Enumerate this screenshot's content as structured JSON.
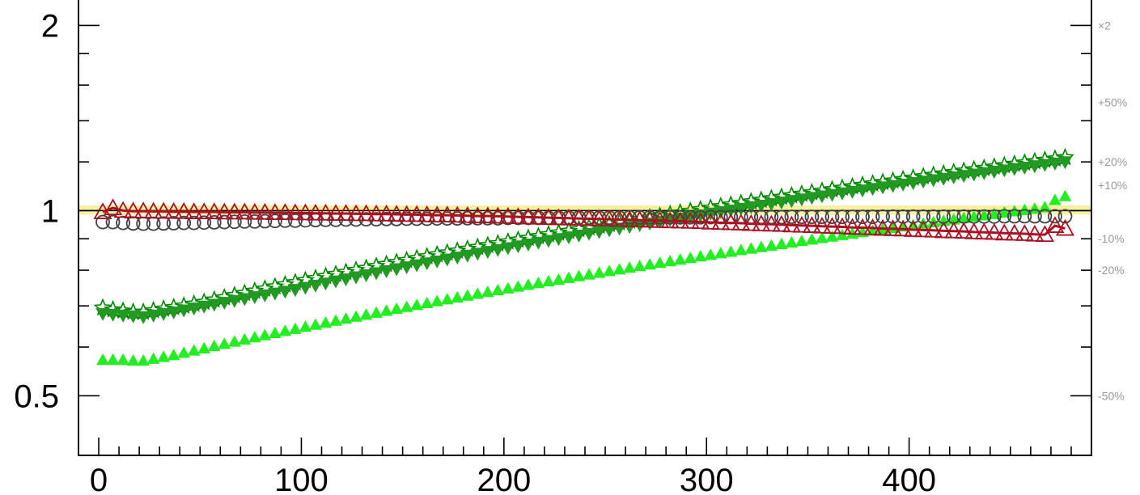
{
  "chart_data": {
    "type": "scatter",
    "title": "",
    "xlabel": "",
    "ylabel": "",
    "x_range": [
      -10,
      490
    ],
    "y_range": [
      0.4,
      2.2
    ],
    "y_scale": "log",
    "x_ticks": [
      "0",
      "100",
      "200",
      "300",
      "400"
    ],
    "x_tick_values": [
      0,
      100,
      200,
      300,
      400
    ],
    "y_ticks": [
      "0.5",
      "1",
      "2"
    ],
    "y_tick_values": [
      0.5,
      1,
      2
    ],
    "y_minor_ticks": [
      0.6,
      0.7,
      0.8,
      0.9,
      1.2,
      1.4,
      1.6,
      1.8
    ],
    "right_axis_labels": [
      "×2",
      "+50%",
      "+20%",
      "+10%",
      "-10%",
      "-20%",
      "-50%"
    ],
    "right_axis_values": [
      2,
      1.5,
      1.2,
      1.1,
      0.9,
      0.8,
      0.5
    ],
    "reference_line": 1,
    "uncertainty_band": [
      0.985,
      1.02
    ],
    "x": [
      2,
      7,
      12,
      17,
      22,
      27,
      32,
      37,
      42,
      47,
      52,
      57,
      62,
      67,
      72,
      77,
      82,
      87,
      92,
      97,
      102,
      107,
      112,
      117,
      122,
      127,
      132,
      137,
      142,
      147,
      152,
      157,
      162,
      167,
      172,
      177,
      182,
      187,
      192,
      197,
      202,
      207,
      212,
      217,
      222,
      227,
      232,
      237,
      242,
      247,
      252,
      257,
      262,
      267,
      272,
      277,
      282,
      287,
      292,
      297,
      302,
      307,
      312,
      317,
      322,
      327,
      332,
      337,
      342,
      347,
      352,
      357,
      362,
      367,
      372,
      377,
      382,
      387,
      392,
      397,
      402,
      407,
      412,
      417,
      422,
      427,
      432,
      437,
      442,
      447,
      452,
      457,
      462,
      467,
      472,
      477
    ],
    "series": [
      {
        "marker": "star",
        "color": "#008800",
        "values": [
          0.695,
          0.69,
          0.687,
          0.684,
          0.684,
          0.688,
          0.692,
          0.696,
          0.7,
          0.705,
          0.71,
          0.716,
          0.722,
          0.728,
          0.734,
          0.74,
          0.746,
          0.752,
          0.758,
          0.764,
          0.77,
          0.776,
          0.782,
          0.788,
          0.794,
          0.8,
          0.806,
          0.812,
          0.818,
          0.824,
          0.83,
          0.836,
          0.842,
          0.848,
          0.854,
          0.86,
          0.866,
          0.872,
          0.878,
          0.884,
          0.89,
          0.896,
          0.902,
          0.908,
          0.914,
          0.92,
          0.926,
          0.932,
          0.938,
          0.944,
          0.95,
          0.956,
          0.962,
          0.968,
          0.974,
          0.98,
          0.986,
          0.992,
          0.998,
          1.004,
          1.01,
          1.016,
          1.022,
          1.028,
          1.034,
          1.04,
          1.046,
          1.052,
          1.058,
          1.064,
          1.07,
          1.076,
          1.082,
          1.088,
          1.094,
          1.1,
          1.106,
          1.112,
          1.118,
          1.124,
          1.13,
          1.136,
          1.142,
          1.148,
          1.154,
          1.16,
          1.166,
          1.172,
          1.178,
          1.184,
          1.19,
          1.196,
          1.202,
          1.208,
          1.214,
          1.22
        ]
      },
      {
        "marker": "triangle-down",
        "color": "#229922",
        "values": [
          0.68,
          0.678,
          0.676,
          0.674,
          0.672,
          0.676,
          0.68,
          0.684,
          0.689,
          0.694,
          0.699,
          0.704,
          0.709,
          0.714,
          0.719,
          0.724,
          0.729,
          0.734,
          0.739,
          0.744,
          0.75,
          0.756,
          0.762,
          0.768,
          0.774,
          0.78,
          0.786,
          0.792,
          0.798,
          0.804,
          0.81,
          0.816,
          0.822,
          0.828,
          0.834,
          0.84,
          0.846,
          0.852,
          0.858,
          0.864,
          0.87,
          0.876,
          0.882,
          0.888,
          0.894,
          0.9,
          0.906,
          0.912,
          0.918,
          0.924,
          0.93,
          0.936,
          0.942,
          0.948,
          0.954,
          0.96,
          0.966,
          0.972,
          0.978,
          0.984,
          0.99,
          0.996,
          1.002,
          1.008,
          1.014,
          1.02,
          1.026,
          1.032,
          1.038,
          1.044,
          1.05,
          1.056,
          1.062,
          1.068,
          1.074,
          1.08,
          1.086,
          1.092,
          1.098,
          1.104,
          1.11,
          1.116,
          1.122,
          1.128,
          1.134,
          1.14,
          1.146,
          1.152,
          1.158,
          1.164,
          1.17,
          1.176,
          1.182,
          1.188,
          1.194,
          1.2
        ]
      },
      {
        "marker": "triangle-up-filled",
        "color": "#22ee22",
        "values": [
          0.572,
          0.572,
          0.572,
          0.57,
          0.57,
          0.574,
          0.578,
          0.582,
          0.587,
          0.592,
          0.597,
          0.602,
          0.607,
          0.612,
          0.617,
          0.622,
          0.627,
          0.632,
          0.637,
          0.642,
          0.647,
          0.652,
          0.657,
          0.662,
          0.667,
          0.672,
          0.677,
          0.682,
          0.687,
          0.692,
          0.697,
          0.702,
          0.707,
          0.712,
          0.717,
          0.722,
          0.727,
          0.732,
          0.737,
          0.742,
          0.747,
          0.752,
          0.757,
          0.762,
          0.767,
          0.772,
          0.777,
          0.782,
          0.787,
          0.792,
          0.797,
          0.802,
          0.807,
          0.812,
          0.817,
          0.822,
          0.827,
          0.832,
          0.837,
          0.842,
          0.847,
          0.852,
          0.857,
          0.862,
          0.867,
          0.872,
          0.877,
          0.882,
          0.887,
          0.892,
          0.897,
          0.902,
          0.907,
          0.912,
          0.917,
          0.922,
          0.927,
          0.932,
          0.937,
          0.942,
          0.947,
          0.952,
          0.957,
          0.962,
          0.967,
          0.972,
          0.977,
          0.982,
          0.987,
          0.992,
          0.997,
          1.002,
          1.007,
          1.012,
          1.04,
          1.055
        ]
      },
      {
        "marker": "circle-open",
        "color": "#444444",
        "values": [
          0.958,
          0.958,
          0.955,
          0.953,
          0.952,
          0.952,
          0.953,
          0.954,
          0.955,
          0.955,
          0.956,
          0.957,
          0.958,
          0.959,
          0.96,
          0.96,
          0.961,
          0.962,
          0.963,
          0.963,
          0.964,
          0.965,
          0.966,
          0.966,
          0.967,
          0.967,
          0.968,
          0.968,
          0.969,
          0.969,
          0.97,
          0.97,
          0.97,
          0.971,
          0.971,
          0.971,
          0.972,
          0.972,
          0.972,
          0.972,
          0.973,
          0.973,
          0.973,
          0.973,
          0.973,
          0.973,
          0.974,
          0.974,
          0.974,
          0.974,
          0.974,
          0.974,
          0.975,
          0.975,
          0.975,
          0.975,
          0.975,
          0.975,
          0.975,
          0.975,
          0.976,
          0.976,
          0.976,
          0.976,
          0.976,
          0.976,
          0.976,
          0.976,
          0.977,
          0.977,
          0.977,
          0.977,
          0.977,
          0.977,
          0.977,
          0.977,
          0.977,
          0.978,
          0.978,
          0.978,
          0.978,
          0.978,
          0.978,
          0.978,
          0.978,
          0.978,
          0.978,
          0.978,
          0.978,
          0.979,
          0.979,
          0.979,
          0.979,
          0.979,
          0.979,
          0.979
        ]
      },
      {
        "marker": "triangle-up-open",
        "color": "#aa1122",
        "values": [
          0.995,
          1.01,
          1.0,
          0.998,
          0.998,
          0.997,
          0.997,
          0.996,
          0.996,
          0.995,
          0.995,
          0.995,
          0.994,
          0.994,
          0.994,
          0.993,
          0.993,
          0.992,
          0.992,
          0.991,
          0.991,
          0.99,
          0.99,
          0.989,
          0.989,
          0.988,
          0.988,
          0.987,
          0.987,
          0.986,
          0.985,
          0.985,
          0.984,
          0.983,
          0.983,
          0.982,
          0.981,
          0.98,
          0.98,
          0.979,
          0.978,
          0.977,
          0.976,
          0.975,
          0.974,
          0.973,
          0.972,
          0.971,
          0.97,
          0.969,
          0.968,
          0.967,
          0.966,
          0.965,
          0.964,
          0.963,
          0.962,
          0.961,
          0.96,
          0.959,
          0.957,
          0.956,
          0.955,
          0.954,
          0.952,
          0.951,
          0.95,
          0.949,
          0.947,
          0.946,
          0.945,
          0.943,
          0.942,
          0.941,
          0.939,
          0.938,
          0.937,
          0.935,
          0.934,
          0.933,
          0.931,
          0.93,
          0.929,
          0.927,
          0.926,
          0.925,
          0.923,
          0.922,
          0.921,
          0.919,
          0.918,
          0.917,
          0.915,
          0.914,
          0.945,
          0.935
        ]
      }
    ]
  }
}
